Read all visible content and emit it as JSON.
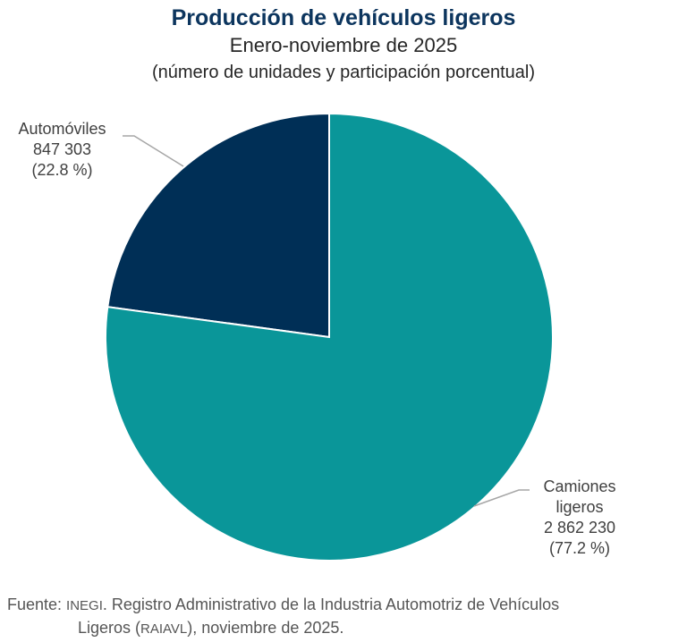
{
  "chart_data": {
    "type": "pie",
    "title": "Producción de vehículos ligeros",
    "subtitle": "Enero-noviembre de 2025",
    "subtitle2": "(número de unidades y participación porcentual)",
    "slices": [
      {
        "label": "Automóviles",
        "value": 847303,
        "value_label": "847 303",
        "percent": 22.8,
        "percent_label": "(22.8 %)",
        "color": "#002f56"
      },
      {
        "label_line1": "Camiones",
        "label_line2": "ligeros",
        "label": "Camiones ligeros",
        "value": 2862230,
        "value_label": "2 862 230",
        "percent": 77.2,
        "percent_label": "(77.2 %)",
        "color": "#0a9699"
      }
    ],
    "start": "12 o'clock, counterclockwise for Automóviles",
    "legend": "none"
  },
  "footer": {
    "prefix": "Fuente: ",
    "org": "INEGI",
    "text1": ". Registro Administrativo de la Industria Automotriz de Vehículos",
    "text2a": "Ligeros (",
    "abbr": "RAIAVL",
    "text2b": "), noviembre de 2025."
  }
}
